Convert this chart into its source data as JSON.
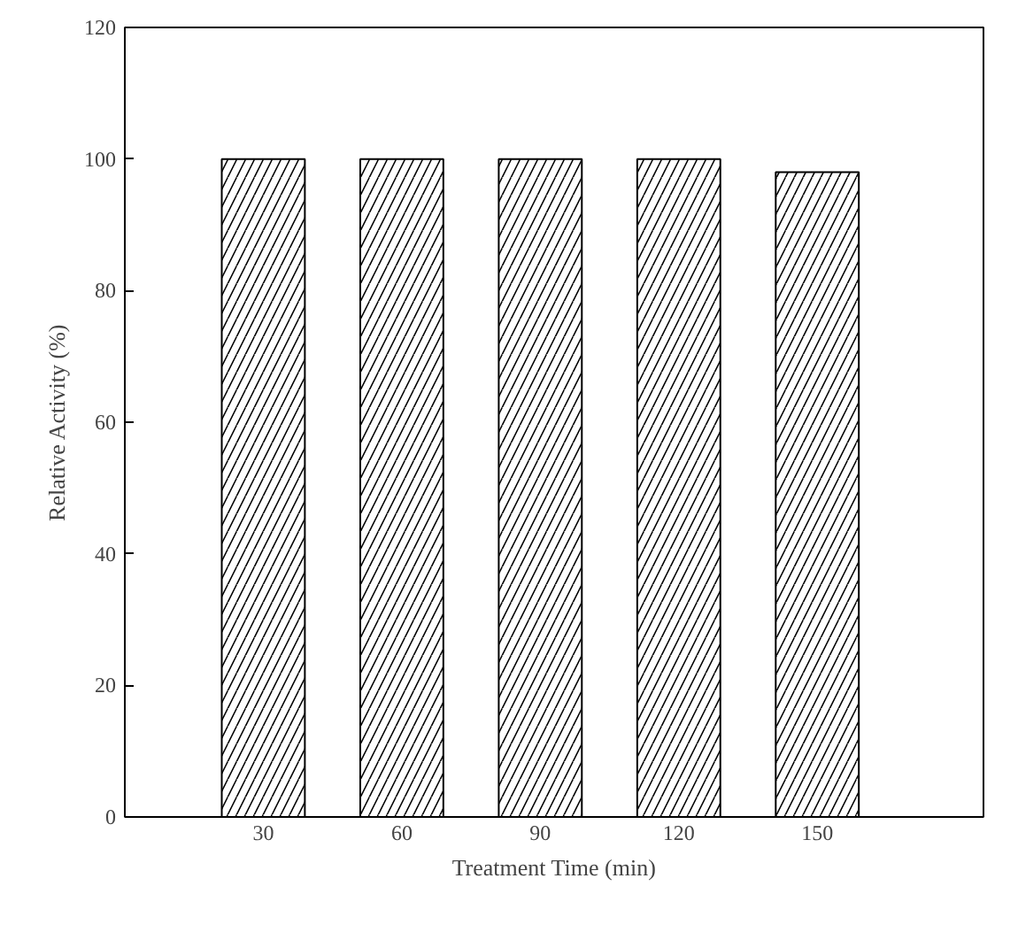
{
  "chart_data": {
    "type": "bar",
    "xlabel": "Treatment Time (min)",
    "ylabel": "Relative Activity (%)",
    "categories": [
      "30",
      "60",
      "90",
      "120",
      "150"
    ],
    "values": [
      100,
      100,
      100,
      100,
      98
    ],
    "color": "#ffffff",
    "ylim": [
      0,
      120
    ],
    "yticks": [
      0,
      20,
      40,
      60,
      80,
      100,
      120
    ],
    "grid": false
  }
}
